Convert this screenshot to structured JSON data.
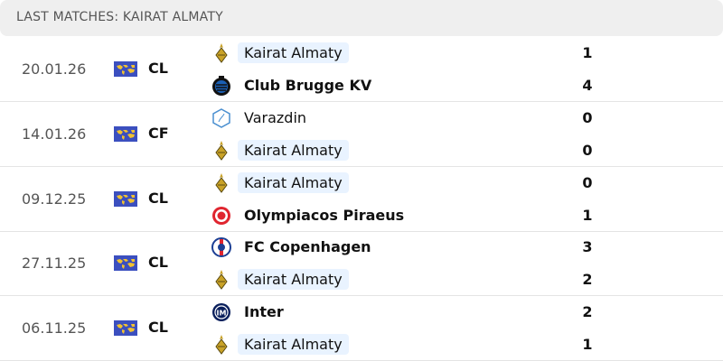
{
  "header": {
    "title": "LAST MATCHES: KAIRAT ALMATY"
  },
  "colors": {
    "highlight": "#e9f3ff",
    "flag": "#3b4fbf"
  },
  "matches": [
    {
      "date": "20.01.26",
      "competition": "CL",
      "competition_icon": "world-flag-icon",
      "home": {
        "name": "Kairat Almaty",
        "score": "1",
        "icon": "kairat-crest-icon",
        "highlight": true,
        "winner": false
      },
      "away": {
        "name": "Club Brugge KV",
        "score": "4",
        "icon": "club-brugge-crest-icon",
        "highlight": false,
        "winner": true
      }
    },
    {
      "date": "14.01.26",
      "competition": "CF",
      "competition_icon": "world-flag-icon",
      "home": {
        "name": "Varazdin",
        "score": "0",
        "icon": "varazdin-crest-icon",
        "highlight": false,
        "winner": false
      },
      "away": {
        "name": "Kairat Almaty",
        "score": "0",
        "icon": "kairat-crest-icon",
        "highlight": true,
        "winner": false
      }
    },
    {
      "date": "09.12.25",
      "competition": "CL",
      "competition_icon": "world-flag-icon",
      "home": {
        "name": "Kairat Almaty",
        "score": "0",
        "icon": "kairat-crest-icon",
        "highlight": true,
        "winner": false
      },
      "away": {
        "name": "Olympiacos Piraeus",
        "score": "1",
        "icon": "olympiacos-crest-icon",
        "highlight": false,
        "winner": true
      }
    },
    {
      "date": "27.11.25",
      "competition": "CL",
      "competition_icon": "world-flag-icon",
      "home": {
        "name": "FC Copenhagen",
        "score": "3",
        "icon": "fc-copenhagen-crest-icon",
        "highlight": false,
        "winner": true
      },
      "away": {
        "name": "Kairat Almaty",
        "score": "2",
        "icon": "kairat-crest-icon",
        "highlight": true,
        "winner": false
      }
    },
    {
      "date": "06.11.25",
      "competition": "CL",
      "competition_icon": "world-flag-icon",
      "home": {
        "name": "Inter",
        "score": "2",
        "icon": "inter-crest-icon",
        "highlight": false,
        "winner": true
      },
      "away": {
        "name": "Kairat Almaty",
        "score": "1",
        "icon": "kairat-crest-icon",
        "highlight": true,
        "winner": false
      }
    }
  ]
}
